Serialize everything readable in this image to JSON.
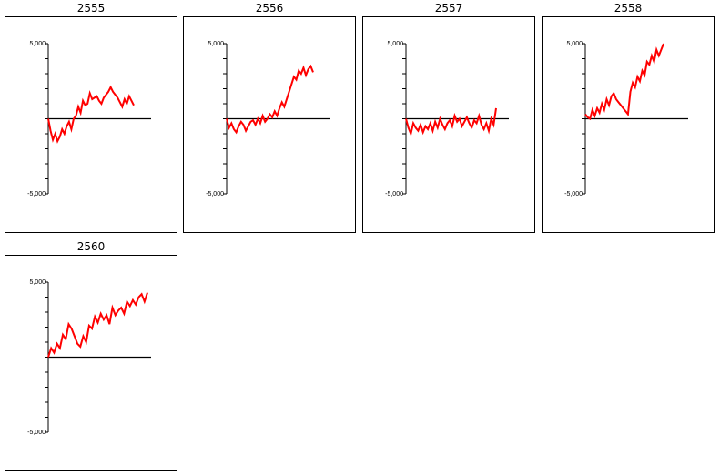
{
  "colors": {
    "series": "#ff0000",
    "axis": "#000000",
    "frame": "#000000",
    "background": "#ffffff"
  },
  "chart_data": [
    {
      "type": "line",
      "title": "2555",
      "ylim": [
        -5000,
        5000
      ],
      "yticks": [
        -5000,
        -4000,
        -3000,
        -2000,
        -1000,
        0,
        1000,
        2000,
        3000,
        4000,
        5000
      ],
      "ytick_labels": [
        "-5,000",
        "5,000"
      ],
      "grid": false,
      "series": [
        {
          "values": [
            0,
            -800,
            -1400,
            -1000,
            -1500,
            -1200,
            -700,
            -1000,
            -500,
            -200,
            -700,
            0,
            200,
            800,
            400,
            1200,
            900,
            1000,
            1700,
            1300,
            1400,
            1500,
            1200,
            1000,
            1400,
            1600,
            1800,
            2100,
            1800,
            1600,
            1400,
            1100,
            800,
            1300,
            1000,
            1500,
            1200,
            900
          ]
        }
      ]
    },
    {
      "type": "line",
      "title": "2556",
      "ylim": [
        -5000,
        5000
      ],
      "yticks": [
        -5000,
        -4000,
        -3000,
        -2000,
        -1000,
        0,
        1000,
        2000,
        3000,
        4000,
        5000
      ],
      "ytick_labels": [
        "-5,000",
        "5,000"
      ],
      "grid": false,
      "series": [
        {
          "values": [
            0,
            -600,
            -300,
            -700,
            -900,
            -500,
            -200,
            -400,
            -800,
            -500,
            -200,
            -100,
            -400,
            0,
            -300,
            200,
            -200,
            0,
            300,
            100,
            500,
            200,
            700,
            1100,
            800,
            1300,
            1800,
            2300,
            2800,
            2600,
            3200,
            3000,
            3400,
            2900,
            3300,
            3500,
            3100
          ]
        }
      ]
    },
    {
      "type": "line",
      "title": "2557",
      "ylim": [
        -5000,
        5000
      ],
      "yticks": [
        -5000,
        -4000,
        -3000,
        -2000,
        -1000,
        0,
        1000,
        2000,
        3000,
        4000,
        5000
      ],
      "ytick_labels": [
        "-5,000",
        "5,000"
      ],
      "grid": false,
      "series": [
        {
          "values": [
            0,
            -600,
            -1000,
            -300,
            -600,
            -800,
            -400,
            -900,
            -500,
            -700,
            -300,
            -800,
            -200,
            -600,
            0,
            -400,
            -700,
            -300,
            -100,
            -500,
            200,
            -200,
            0,
            -500,
            -200,
            100,
            -300,
            -600,
            -100,
            -300,
            200,
            -400,
            -700,
            -300,
            -800,
            0,
            -400,
            700
          ]
        }
      ]
    },
    {
      "type": "line",
      "title": "2558",
      "ylim": [
        -5000,
        5000
      ],
      "yticks": [
        -5000,
        -4000,
        -3000,
        -2000,
        -1000,
        0,
        1000,
        2000,
        3000,
        4000,
        5000
      ],
      "ytick_labels": [
        "-5,000",
        "5,000"
      ],
      "grid": false,
      "series": [
        {
          "values": [
            300,
            100,
            0,
            600,
            200,
            700,
            400,
            1000,
            600,
            1300,
            900,
            1500,
            1700,
            1300,
            1100,
            900,
            700,
            500,
            300,
            1800,
            2400,
            2100,
            2800,
            2500,
            3200,
            2900,
            3800,
            3600,
            4200,
            3800,
            4600,
            4200,
            4600,
            5000
          ]
        }
      ]
    },
    {
      "type": "line",
      "title": "2560",
      "ylim": [
        -5000,
        5000
      ],
      "yticks": [
        -5000,
        -4000,
        -3000,
        -2000,
        -1000,
        0,
        1000,
        2000,
        3000,
        4000,
        5000
      ],
      "ytick_labels": [
        "-5,000",
        "5,000"
      ],
      "grid": false,
      "series": [
        {
          "values": [
            0,
            600,
            300,
            900,
            600,
            1500,
            1200,
            2200,
            1900,
            1400,
            900,
            700,
            1400,
            1000,
            2100,
            1900,
            2700,
            2300,
            2900,
            2500,
            2800,
            2200,
            3300,
            2800,
            3100,
            3300,
            2900,
            3700,
            3400,
            3800,
            3500,
            4000,
            4200,
            3700,
            4300
          ]
        }
      ]
    }
  ]
}
